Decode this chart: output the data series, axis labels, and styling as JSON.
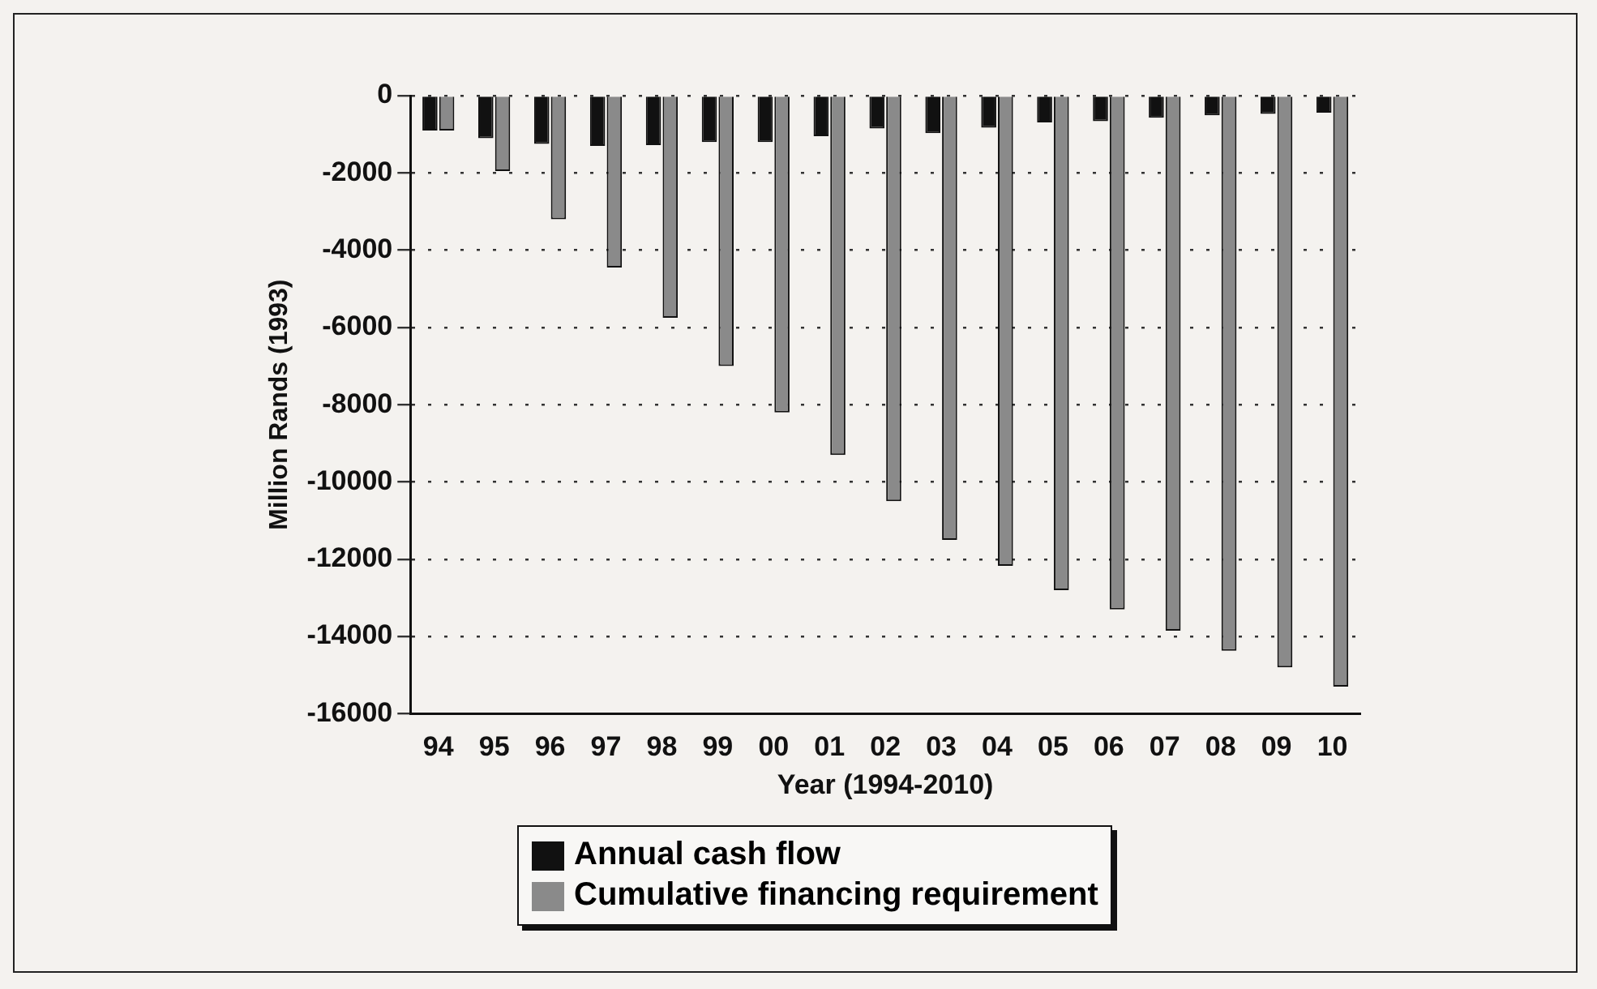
{
  "chart_data": {
    "type": "bar",
    "xlabel": "Year (1994-2010)",
    "ylabel": "Million Rands (1993)",
    "categories": [
      "94",
      "95",
      "96",
      "97",
      "98",
      "99",
      "00",
      "01",
      "02",
      "03",
      "04",
      "05",
      "06",
      "07",
      "08",
      "09",
      "10"
    ],
    "series": [
      {
        "name": "Annual cash flow",
        "color": "#111111",
        "values": [
          -900,
          -1100,
          -1250,
          -1300,
          -1280,
          -1200,
          -1200,
          -1050,
          -850,
          -970,
          -830,
          -690,
          -660,
          -570,
          -510,
          -470,
          -440
        ]
      },
      {
        "name": "Cumulative financing requirement",
        "color": "#8a8a8a",
        "values": [
          -900,
          -1950,
          -3200,
          -4450,
          -5750,
          -7000,
          -8200,
          -9300,
          -10500,
          -11500,
          -12170,
          -12800,
          -13300,
          -13850,
          -14370,
          -14800,
          -15300
        ]
      }
    ],
    "ylim": [
      -16000,
      0
    ],
    "yticks": [
      -16000,
      -14000,
      -12000,
      -10000,
      -8000,
      -6000,
      -4000,
      -2000,
      0
    ],
    "grid": "y",
    "legend": "bottom"
  }
}
